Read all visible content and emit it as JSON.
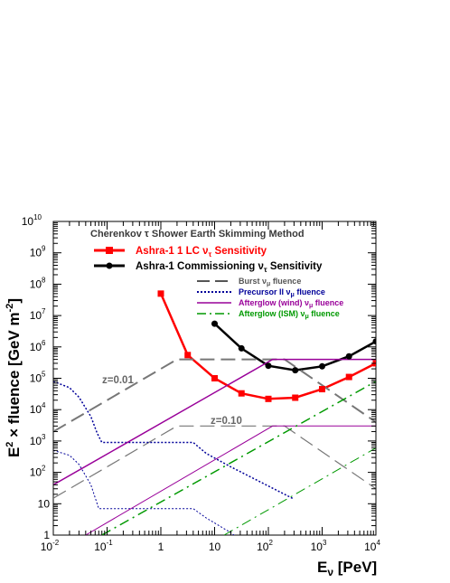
{
  "chart_data": {
    "type": "line",
    "xscale": "log",
    "yscale": "log",
    "xlim": [
      0.01,
      10000
    ],
    "ylim": [
      1,
      10000000000
    ],
    "xticks": [
      {
        "v": 0.01,
        "base": "10",
        "exp": "-2"
      },
      {
        "v": 0.1,
        "base": "10",
        "exp": "-1"
      },
      {
        "v": 1,
        "base": "1",
        "exp": ""
      },
      {
        "v": 10,
        "base": "10",
        "exp": ""
      },
      {
        "v": 100,
        "base": "10",
        "exp": "2"
      },
      {
        "v": 1000,
        "base": "10",
        "exp": "3"
      },
      {
        "v": 10000,
        "base": "10",
        "exp": "4"
      }
    ],
    "yticks": [
      {
        "v": 1,
        "base": "1",
        "exp": ""
      },
      {
        "v": 10,
        "base": "10",
        "exp": ""
      },
      {
        "v": 100,
        "base": "10",
        "exp": "2"
      },
      {
        "v": 1000,
        "base": "10",
        "exp": "3"
      },
      {
        "v": 10000,
        "base": "10",
        "exp": "4"
      },
      {
        "v": 100000,
        "base": "10",
        "exp": "5"
      },
      {
        "v": 1000000,
        "base": "10",
        "exp": "6"
      },
      {
        "v": 10000000,
        "base": "10",
        "exp": "7"
      },
      {
        "v": 100000000,
        "base": "10",
        "exp": "8"
      },
      {
        "v": 1000000000,
        "base": "10",
        "exp": "9"
      },
      {
        "v": 10000000000,
        "base": "10",
        "exp": "10"
      }
    ],
    "xlabel": {
      "main": "E",
      "sub": "ν",
      "tail": " [PeV]"
    },
    "ylabel": {
      "a": "E",
      "a_sup": "2",
      "b": " × fluence [GeV m",
      "b_sup": "-2",
      "c": "]"
    },
    "legend_title": "Cherenkov τ Shower Earth Skimming Method",
    "legend": [
      {
        "label_main": "Ashra-1 1 LC ν",
        "label_sub": "τ",
        "label_tail": " Sensitivity",
        "color": "#ff0000"
      },
      {
        "label_main": "Ashra-1 Commissioning ν",
        "label_sub": "τ",
        "label_tail": " Sensitivity",
        "color": "#000000"
      },
      {
        "label_main": "Burst ν",
        "label_sub": "μ",
        "label_tail": " fluence",
        "color": "#444444"
      },
      {
        "label_main": "Precursor II ν",
        "label_sub": "μ",
        "label_tail": " fluence",
        "color": "#000099"
      },
      {
        "label_main": "Afterglow (wind) ν",
        "label_sub": "μ",
        "label_tail": " fluence",
        "color": "#990099"
      },
      {
        "label_main": "Afterglow (ISM) ν",
        "label_sub": "μ",
        "label_tail": " fluence",
        "color": "#009900"
      }
    ],
    "annotations": [
      "z=0.01",
      "z=0.10"
    ],
    "series": [
      {
        "name": "Ashra-1 1 LC ντ Sensitivity",
        "color": "#ff0000",
        "points": [
          [
            1,
            50000000
          ],
          [
            3.16,
            550000
          ],
          [
            10,
            100000
          ],
          [
            31.6,
            33000
          ],
          [
            100,
            22000
          ],
          [
            316,
            24000
          ],
          [
            1000,
            45000
          ],
          [
            3160,
            110000
          ],
          [
            10000,
            300000
          ]
        ]
      },
      {
        "name": "Ashra-1 Commissioning ντ Sensitivity",
        "color": "#000000",
        "points": [
          [
            10,
            5500000
          ],
          [
            31.6,
            900000
          ],
          [
            100,
            250000
          ],
          [
            316,
            180000
          ],
          [
            1000,
            240000
          ],
          [
            3160,
            500000
          ],
          [
            10000,
            1500000
          ]
        ]
      },
      {
        "name": "Burst νμ fluence (z=0.01)",
        "color": "#777777",
        "points": [
          [
            0.01,
            2000
          ],
          [
            2,
            400000
          ],
          [
            200,
            400000
          ],
          [
            10000,
            4000
          ]
        ]
      },
      {
        "name": "Burst νμ fluence (z=0.10)",
        "color": "#777777",
        "points": [
          [
            0.01,
            15
          ],
          [
            2,
            3000
          ],
          [
            200,
            3000
          ],
          [
            10000,
            30
          ]
        ]
      },
      {
        "name": "Precursor II νμ fluence (z=0.01)",
        "color": "#000099",
        "points": [
          [
            0.01,
            80000
          ],
          [
            0.02,
            50000
          ],
          [
            0.03,
            25000
          ],
          [
            0.05,
            6000
          ],
          [
            0.065,
            1800
          ],
          [
            0.08,
            900
          ],
          [
            4,
            900
          ],
          [
            7,
            400
          ],
          [
            20,
            150
          ],
          [
            300,
            14
          ]
        ]
      },
      {
        "name": "Precursor II νμ fluence (z=0.10)",
        "color": "#000099",
        "points": [
          [
            0.01,
            500
          ],
          [
            0.02,
            350
          ],
          [
            0.03,
            180
          ],
          [
            0.05,
            40
          ],
          [
            0.07,
            7
          ],
          [
            4,
            7
          ],
          [
            7,
            3.5
          ],
          [
            20,
            1.2
          ],
          [
            30,
            0.7
          ]
        ]
      },
      {
        "name": "Afterglow (wind) νμ fluence (z=0.01)",
        "color": "#990099",
        "points": [
          [
            0.01,
            40
          ],
          [
            120,
            400000
          ],
          [
            10000,
            400000
          ]
        ]
      },
      {
        "name": "Afterglow (wind) νμ fluence (z=0.10)",
        "color": "#990099",
        "points": [
          [
            0.04,
            1
          ],
          [
            120,
            3000
          ],
          [
            10000,
            3000
          ]
        ]
      },
      {
        "name": "Afterglow (ISM) νμ fluence (z=0.01)",
        "color": "#009900",
        "points": [
          [
            0.08,
            1
          ],
          [
            10000,
            80000
          ]
        ]
      },
      {
        "name": "Afterglow (ISM) νμ fluence (z=0.10)",
        "color": "#009900",
        "points": [
          [
            15,
            1
          ],
          [
            10000,
            600
          ]
        ]
      }
    ]
  }
}
